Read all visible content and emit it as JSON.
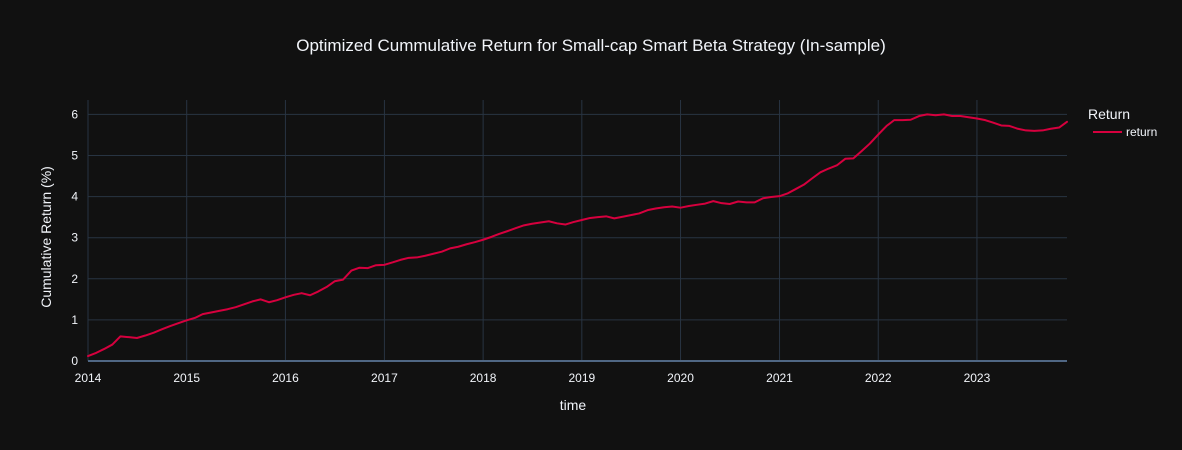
{
  "colors": {
    "background": "#111111",
    "grid": "#283442",
    "zero_line": "#506784",
    "text": "#f2f5fa",
    "series": "#d6003e"
  },
  "chart_data": {
    "type": "line",
    "title": "Optimized Cummulative Return for Small-cap Smart Beta Strategy (In-sample)",
    "xlabel": "time",
    "ylabel": "Cumulative Return (%)",
    "xlim": [
      "2014-01-01",
      "2023-11-30"
    ],
    "ylim": [
      0,
      6.35
    ],
    "grid": true,
    "x_ticks": [
      "2014",
      "2015",
      "2016",
      "2017",
      "2018",
      "2019",
      "2020",
      "2021",
      "2022",
      "2023"
    ],
    "y_ticks": [
      0,
      1,
      2,
      3,
      4,
      5,
      6
    ],
    "legend": {
      "title": "Return",
      "placement": "right"
    },
    "series": [
      {
        "name": "return",
        "x": [
          "2014-01-01",
          "2014-02-01",
          "2014-03-01",
          "2014-04-01",
          "2014-05-01",
          "2014-06-01",
          "2014-07-01",
          "2014-08-01",
          "2014-09-01",
          "2014-10-01",
          "2014-11-01",
          "2014-12-01",
          "2015-01-01",
          "2015-02-01",
          "2015-03-01",
          "2015-04-01",
          "2015-05-01",
          "2015-06-01",
          "2015-07-01",
          "2015-08-01",
          "2015-09-01",
          "2015-10-01",
          "2015-11-01",
          "2015-12-01",
          "2016-01-01",
          "2016-02-01",
          "2016-03-01",
          "2016-04-01",
          "2016-05-01",
          "2016-06-01",
          "2016-07-01",
          "2016-08-01",
          "2016-09-01",
          "2016-10-01",
          "2016-11-01",
          "2016-12-01",
          "2017-01-01",
          "2017-02-01",
          "2017-03-01",
          "2017-04-01",
          "2017-05-01",
          "2017-06-01",
          "2017-07-01",
          "2017-08-01",
          "2017-09-01",
          "2017-10-01",
          "2017-11-01",
          "2017-12-01",
          "2018-01-01",
          "2018-02-01",
          "2018-03-01",
          "2018-04-01",
          "2018-05-01",
          "2018-06-01",
          "2018-07-01",
          "2018-08-01",
          "2018-09-01",
          "2018-10-01",
          "2018-11-01",
          "2018-12-01",
          "2019-01-01",
          "2019-02-01",
          "2019-03-01",
          "2019-04-01",
          "2019-05-01",
          "2019-06-01",
          "2019-07-01",
          "2019-08-01",
          "2019-09-01",
          "2019-10-01",
          "2019-11-01",
          "2019-12-01",
          "2020-01-01",
          "2020-02-01",
          "2020-03-01",
          "2020-04-01",
          "2020-05-01",
          "2020-06-01",
          "2020-07-01",
          "2020-08-01",
          "2020-09-01",
          "2020-10-01",
          "2020-11-01",
          "2020-12-01",
          "2021-01-01",
          "2021-02-01",
          "2021-03-01",
          "2021-04-01",
          "2021-05-01",
          "2021-06-01",
          "2021-07-01",
          "2021-08-01",
          "2021-09-01",
          "2021-10-01",
          "2021-11-01",
          "2021-12-01",
          "2022-01-01",
          "2022-02-01",
          "2022-03-01",
          "2022-04-01",
          "2022-05-01",
          "2022-06-01",
          "2022-07-01",
          "2022-08-01",
          "2022-09-01",
          "2022-10-01",
          "2022-11-01",
          "2022-12-01",
          "2023-01-01",
          "2023-02-01",
          "2023-03-01",
          "2023-04-01",
          "2023-05-01",
          "2023-06-01",
          "2023-07-01",
          "2023-08-01",
          "2023-09-01",
          "2023-10-01",
          "2023-11-01",
          "2023-11-30"
        ],
        "y": [
          0.12,
          0.2,
          0.29,
          0.4,
          0.6,
          0.58,
          0.56,
          0.62,
          0.69,
          0.77,
          0.85,
          0.92,
          0.99,
          1.05,
          1.14,
          1.18,
          1.22,
          1.26,
          1.31,
          1.38,
          1.45,
          1.5,
          1.43,
          1.48,
          1.55,
          1.61,
          1.65,
          1.6,
          1.69,
          1.8,
          1.94,
          1.98,
          2.2,
          2.27,
          2.26,
          2.33,
          2.34,
          2.4,
          2.46,
          2.51,
          2.52,
          2.56,
          2.61,
          2.66,
          2.74,
          2.78,
          2.84,
          2.89,
          2.95,
          3.02,
          3.09,
          3.16,
          3.23,
          3.3,
          3.34,
          3.37,
          3.4,
          3.35,
          3.32,
          3.38,
          3.43,
          3.48,
          3.5,
          3.52,
          3.47,
          3.51,
          3.55,
          3.59,
          3.67,
          3.71,
          3.74,
          3.76,
          3.73,
          3.77,
          3.8,
          3.83,
          3.89,
          3.84,
          3.82,
          3.88,
          3.86,
          3.86,
          3.96,
          3.99,
          4.01,
          4.08,
          4.18,
          4.29,
          4.44,
          4.59,
          4.68,
          4.76,
          4.92,
          4.93,
          5.11,
          5.29,
          5.51,
          5.72,
          5.86,
          5.86,
          5.87,
          5.96,
          6.0,
          5.98,
          6.0,
          5.96,
          5.96,
          5.93,
          5.9,
          5.86,
          5.8,
          5.73,
          5.72,
          5.65,
          5.61,
          5.6,
          5.61,
          5.65,
          5.68,
          5.82
        ]
      }
    ]
  }
}
